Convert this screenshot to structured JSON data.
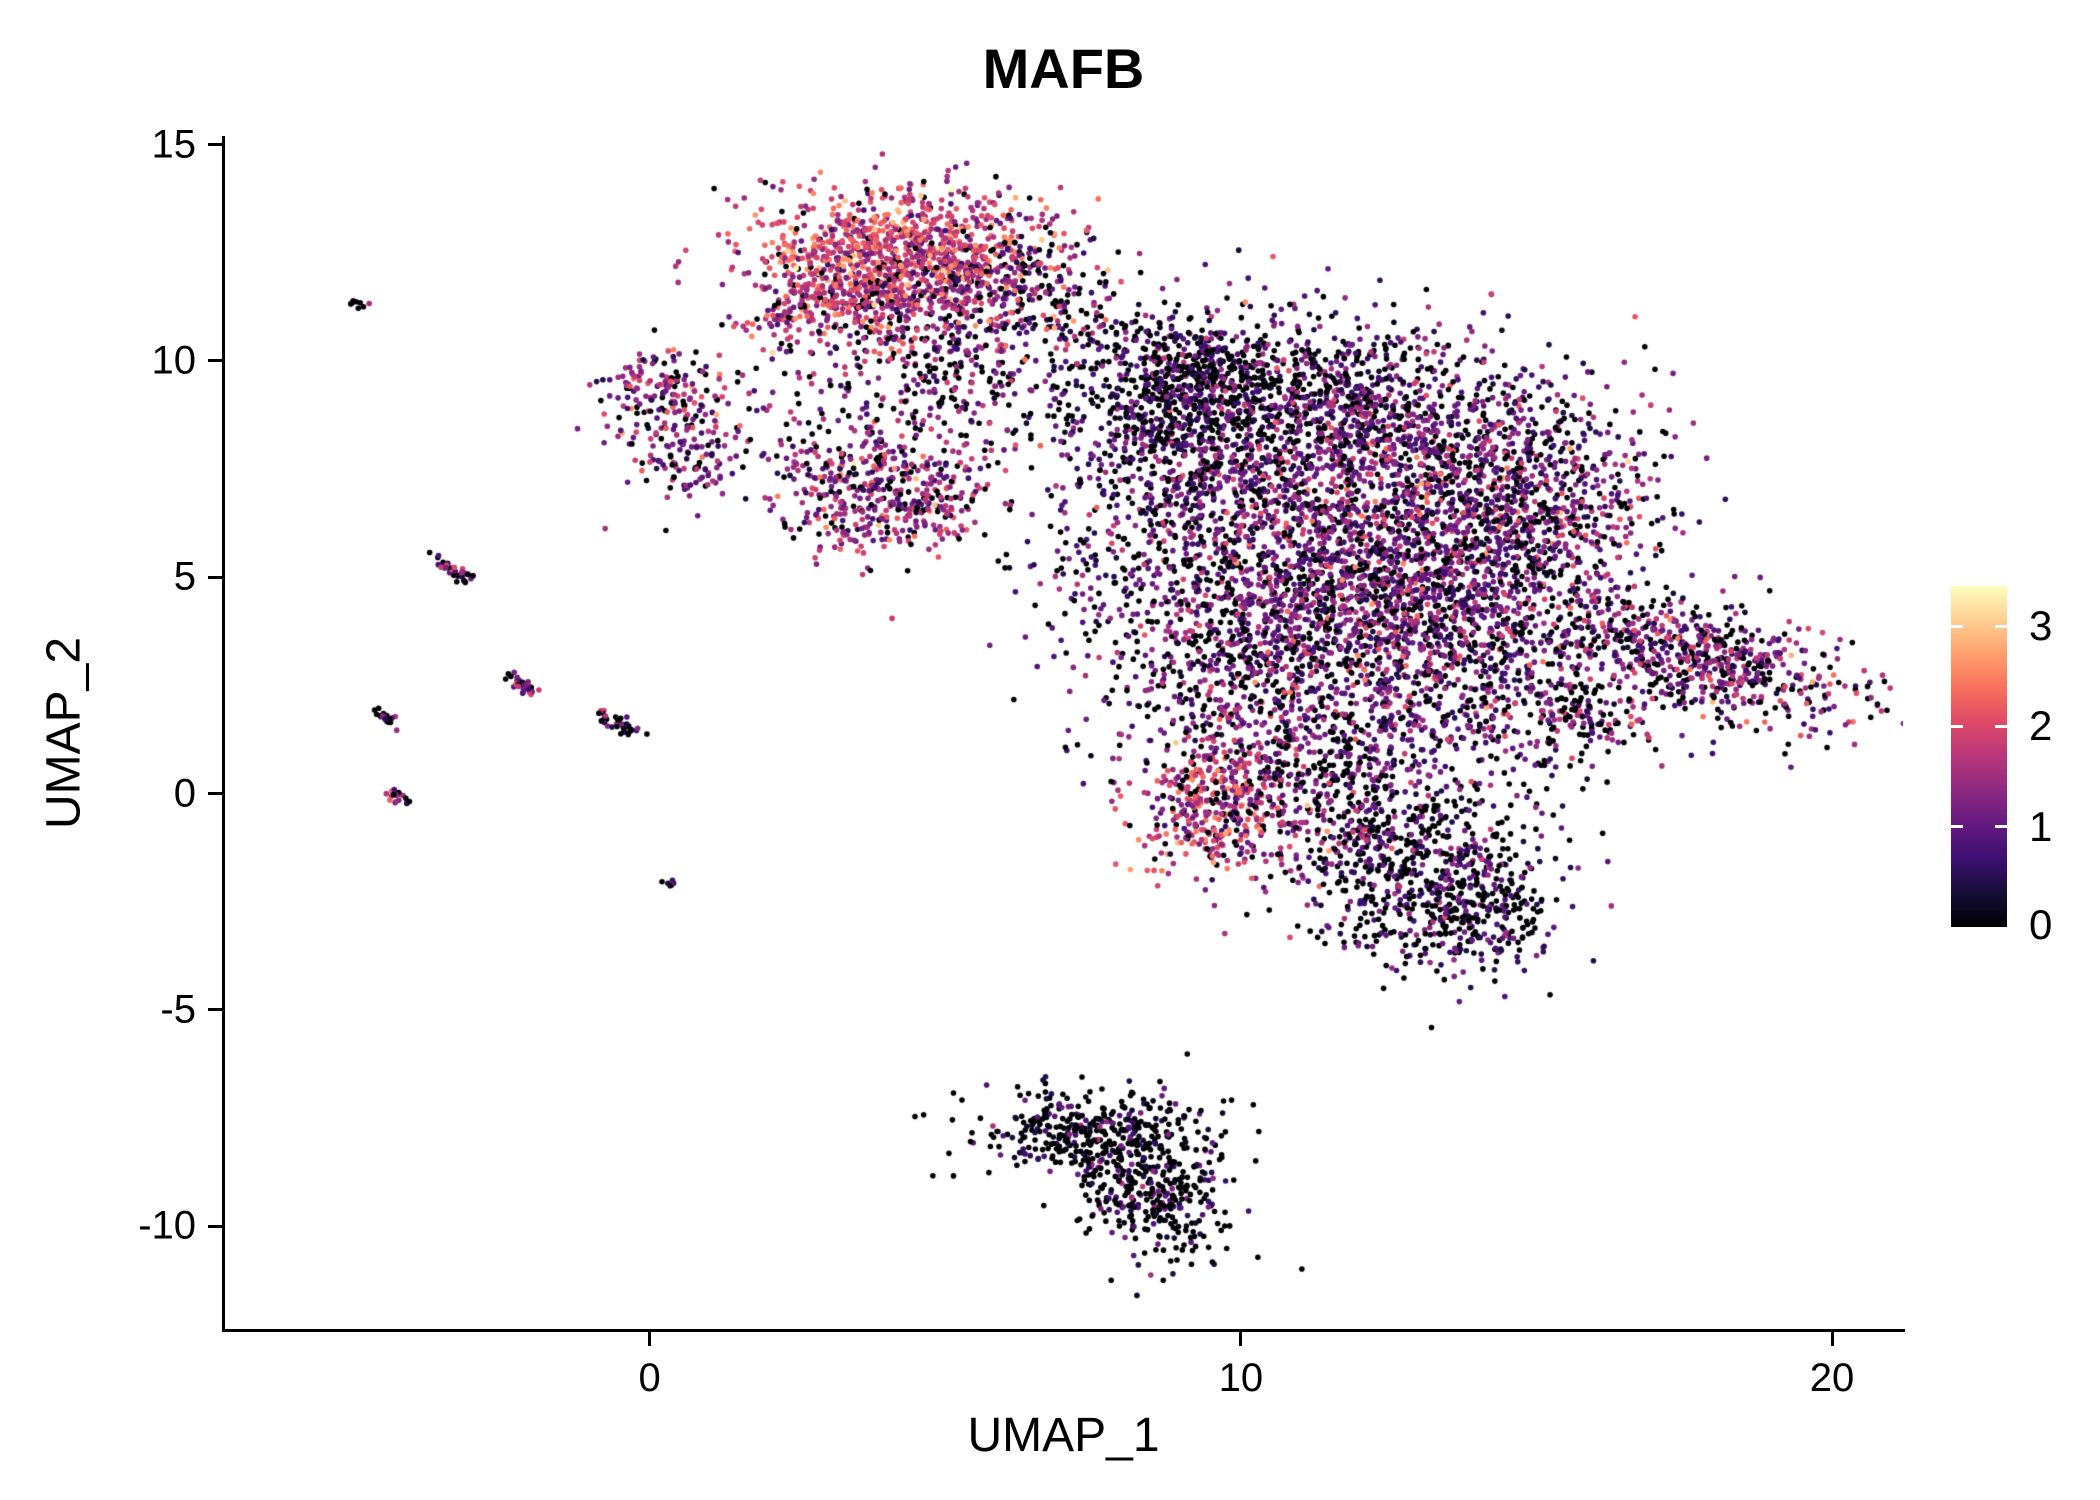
{
  "title": "MAFB",
  "axes": {
    "x": {
      "label": "UMAP_1",
      "ticks": [
        0,
        10,
        20
      ]
    },
    "y": {
      "label": "UMAP_2",
      "ticks": [
        15,
        10,
        5,
        0,
        -5,
        -10
      ]
    }
  },
  "colorbar": {
    "min": 0,
    "max": 3.4,
    "ticks": [
      0,
      1,
      2,
      3
    ],
    "colormap": "magma",
    "stops": [
      {
        "t": 0.0,
        "color": "#000004"
      },
      {
        "t": 0.1,
        "color": "#140e36"
      },
      {
        "t": 0.2,
        "color": "#3b0f70"
      },
      {
        "t": 0.3,
        "color": "#641a80"
      },
      {
        "t": 0.4,
        "color": "#8c2981"
      },
      {
        "t": 0.5,
        "color": "#b73779"
      },
      {
        "t": 0.6,
        "color": "#de4968"
      },
      {
        "t": 0.7,
        "color": "#f7705c"
      },
      {
        "t": 0.8,
        "color": "#fe9f6d"
      },
      {
        "t": 0.9,
        "color": "#fecf92"
      },
      {
        "t": 1.0,
        "color": "#fcfdbf"
      }
    ]
  },
  "chart_data": {
    "type": "scatter",
    "title": "MAFB",
    "xlabel": "UMAP_1",
    "ylabel": "UMAP_2",
    "xlim": [
      -7.2,
      21.2
    ],
    "ylim": [
      -12.4,
      15.2
    ],
    "grid": false,
    "legend_position": "right",
    "color_scale": {
      "name": "magma",
      "domain": [
        0,
        3.4
      ],
      "feature": "MAFB expression"
    },
    "point_radius_px": 2.8,
    "seed": 42,
    "clusters": [
      {
        "name": "myeloid-top-core",
        "cx": 4.2,
        "cy": 12.5,
        "sx": 1.25,
        "sy": 0.75,
        "rot": 0,
        "n": 950,
        "zero_frac": 0.07,
        "mean": 1.9,
        "sd": 0.55
      },
      {
        "name": "myeloid-top-left",
        "cx": 3.2,
        "cy": 11.4,
        "sx": 0.8,
        "sy": 0.6,
        "rot": 20,
        "n": 300,
        "zero_frac": 0.12,
        "mean": 1.7,
        "sd": 0.5
      },
      {
        "name": "myeloid-top-right",
        "cx": 5.9,
        "cy": 11.9,
        "sx": 0.85,
        "sy": 0.75,
        "rot": 0,
        "n": 280,
        "zero_frac": 0.3,
        "mean": 1.2,
        "sd": 0.6
      },
      {
        "name": "myeloid-top-tail",
        "cx": 4.8,
        "cy": 10.3,
        "sx": 0.8,
        "sy": 0.7,
        "rot": 0,
        "n": 160,
        "zero_frac": 0.3,
        "mean": 1.3,
        "sd": 0.6
      },
      {
        "name": "left-blob-upper",
        "cx": 0.15,
        "cy": 9.4,
        "sx": 0.55,
        "sy": 0.5,
        "rot": 0,
        "n": 150,
        "zero_frac": 0.2,
        "mean": 1.4,
        "sd": 0.6
      },
      {
        "name": "left-blob-lower",
        "cx": 0.6,
        "cy": 7.9,
        "sx": 0.45,
        "sy": 0.55,
        "rot": 0,
        "n": 120,
        "zero_frac": 0.25,
        "mean": 1.2,
        "sd": 0.6
      },
      {
        "name": "mid-blob",
        "cx": 4.0,
        "cy": 7.0,
        "sx": 0.85,
        "sy": 0.8,
        "rot": 0,
        "n": 480,
        "zero_frac": 0.18,
        "mean": 1.4,
        "sd": 0.55
      },
      {
        "name": "mid-sparse",
        "cx": 2.8,
        "cy": 8.8,
        "sx": 1.0,
        "sy": 0.9,
        "rot": 0,
        "n": 90,
        "zero_frac": 0.3,
        "mean": 1.2,
        "sd": 0.5
      },
      {
        "name": "gap-sparse",
        "cx": 5.3,
        "cy": 9.2,
        "sx": 0.9,
        "sy": 0.7,
        "rot": 0,
        "n": 70,
        "zero_frac": 0.35,
        "mean": 1.1,
        "sd": 0.55
      },
      {
        "name": "bridge-sparse",
        "cx": 6.8,
        "cy": 10.6,
        "sx": 1.2,
        "sy": 1.0,
        "rot": 0,
        "n": 140,
        "zero_frac": 0.45,
        "mean": 1.0,
        "sd": 0.6
      },
      {
        "name": "left-of-main-sparse",
        "cx": 7.9,
        "cy": 6.3,
        "sx": 0.9,
        "sy": 2.2,
        "rot": 0,
        "n": 200,
        "zero_frac": 0.4,
        "mean": 0.9,
        "sd": 0.55
      },
      {
        "name": "main-top",
        "cx": 11.2,
        "cy": 9.2,
        "sx": 1.9,
        "sy": 1.0,
        "rot": -8,
        "n": 950,
        "zero_frac": 0.38,
        "mean": 0.9,
        "sd": 0.5
      },
      {
        "name": "main-top-left-dark",
        "cx": 8.8,
        "cy": 9.4,
        "sx": 0.8,
        "sy": 0.8,
        "rot": 0,
        "n": 350,
        "zero_frac": 0.45,
        "mean": 0.8,
        "sd": 0.5
      },
      {
        "name": "main-top-left",
        "cx": 9.4,
        "cy": 7.4,
        "sx": 1.1,
        "sy": 1.2,
        "rot": 0,
        "n": 480,
        "zero_frac": 0.32,
        "mean": 1.0,
        "sd": 0.5
      },
      {
        "name": "main-core",
        "cx": 12.8,
        "cy": 6.8,
        "sx": 1.8,
        "sy": 1.5,
        "rot": 0,
        "n": 1500,
        "zero_frac": 0.22,
        "mean": 1.15,
        "sd": 0.55
      },
      {
        "name": "main-right",
        "cx": 15.1,
        "cy": 6.5,
        "sx": 1.0,
        "sy": 1.3,
        "rot": 0,
        "n": 420,
        "zero_frac": 0.3,
        "mean": 1.2,
        "sd": 0.6
      },
      {
        "name": "main-mid",
        "cx": 11.0,
        "cy": 4.4,
        "sx": 1.6,
        "sy": 1.3,
        "rot": 0,
        "n": 900,
        "zero_frac": 0.25,
        "mean": 1.2,
        "sd": 0.55
      },
      {
        "name": "main-mid-right",
        "cx": 13.4,
        "cy": 3.7,
        "sx": 1.3,
        "sy": 1.2,
        "rot": 0,
        "n": 650,
        "zero_frac": 0.3,
        "mean": 1.05,
        "sd": 0.5
      },
      {
        "name": "main-left-arm",
        "cx": 9.8,
        "cy": 2.6,
        "sx": 0.95,
        "sy": 1.3,
        "rot": 0,
        "n": 330,
        "zero_frac": 0.32,
        "mean": 1.0,
        "sd": 0.5
      },
      {
        "name": "hotspot",
        "cx": 9.6,
        "cy": -0.3,
        "sx": 0.75,
        "sy": 0.85,
        "rot": 0,
        "n": 380,
        "zero_frac": 0.12,
        "mean": 1.75,
        "sd": 0.55
      },
      {
        "name": "main-lower",
        "cx": 11.6,
        "cy": 0.7,
        "sx": 1.3,
        "sy": 1.1,
        "rot": 0,
        "n": 480,
        "zero_frac": 0.3,
        "mean": 1.1,
        "sd": 0.5
      },
      {
        "name": "main-bottom",
        "cx": 12.9,
        "cy": -1.7,
        "sx": 1.05,
        "sy": 1.1,
        "rot": 0,
        "n": 560,
        "zero_frac": 0.45,
        "mean": 0.85,
        "sd": 0.5
      },
      {
        "name": "main-bottom-tip",
        "cx": 14.0,
        "cy": -2.9,
        "sx": 0.65,
        "sy": 0.6,
        "rot": -30,
        "n": 220,
        "zero_frac": 0.5,
        "mean": 0.7,
        "sd": 0.45
      },
      {
        "name": "main-right-gap-sparse",
        "cx": 14.3,
        "cy": 1.5,
        "sx": 1.3,
        "sy": 1.0,
        "rot": 0,
        "n": 180,
        "zero_frac": 0.4,
        "mean": 0.9,
        "sd": 0.5
      },
      {
        "name": "right-arm",
        "cx": 17.6,
        "cy": 3.2,
        "sx": 1.55,
        "sy": 0.6,
        "rot": -23,
        "n": 700,
        "zero_frac": 0.28,
        "mean": 1.25,
        "sd": 0.55
      },
      {
        "name": "right-arm-tail",
        "cx": 15.7,
        "cy": 1.9,
        "sx": 0.6,
        "sy": 0.35,
        "rot": -20,
        "n": 120,
        "zero_frac": 0.35,
        "mean": 1.1,
        "sd": 0.5
      },
      {
        "name": "bottom-cluster-upper",
        "cx": 7.6,
        "cy": -7.9,
        "sx": 1.05,
        "sy": 0.5,
        "rot": 0,
        "n": 380,
        "zero_frac": 0.6,
        "mean": 0.55,
        "sd": 0.45
      },
      {
        "name": "bottom-cluster-lower",
        "cx": 8.5,
        "cy": -9.3,
        "sx": 0.6,
        "sy": 0.75,
        "rot": 25,
        "n": 330,
        "zero_frac": 0.62,
        "mean": 0.6,
        "sd": 0.45
      },
      {
        "name": "streak-a",
        "cx": -5.0,
        "cy": 11.4,
        "sx": 0.12,
        "sy": 0.05,
        "rot": -40,
        "n": 8,
        "zero_frac": 0.5,
        "mean": 0.7,
        "sd": 0.4
      },
      {
        "name": "streak-b",
        "cx": -3.3,
        "cy": 5.15,
        "sx": 0.22,
        "sy": 0.07,
        "rot": -40,
        "n": 40,
        "zero_frac": 0.3,
        "mean": 1.2,
        "sd": 0.6
      },
      {
        "name": "streak-c",
        "cx": -2.15,
        "cy": 2.5,
        "sx": 0.18,
        "sy": 0.07,
        "rot": -40,
        "n": 32,
        "zero_frac": 0.25,
        "mean": 1.3,
        "sd": 0.6
      },
      {
        "name": "streak-d",
        "cx": -0.55,
        "cy": 1.6,
        "sx": 0.22,
        "sy": 0.08,
        "rot": -35,
        "n": 40,
        "zero_frac": 0.4,
        "mean": 1.0,
        "sd": 0.6
      },
      {
        "name": "streak-e",
        "cx": -4.45,
        "cy": 1.75,
        "sx": 0.14,
        "sy": 0.06,
        "rot": -40,
        "n": 22,
        "zero_frac": 0.3,
        "mean": 1.1,
        "sd": 0.5
      },
      {
        "name": "streak-f",
        "cx": -4.25,
        "cy": -0.1,
        "sx": 0.12,
        "sy": 0.06,
        "rot": -40,
        "n": 18,
        "zero_frac": 0.3,
        "mean": 1.2,
        "sd": 0.5
      },
      {
        "name": "streak-g",
        "cx": 0.3,
        "cy": -2.1,
        "sx": 0.08,
        "sy": 0.06,
        "rot": 0,
        "n": 7,
        "zero_frac": 0.4,
        "mean": 0.9,
        "sd": 0.4
      }
    ]
  }
}
